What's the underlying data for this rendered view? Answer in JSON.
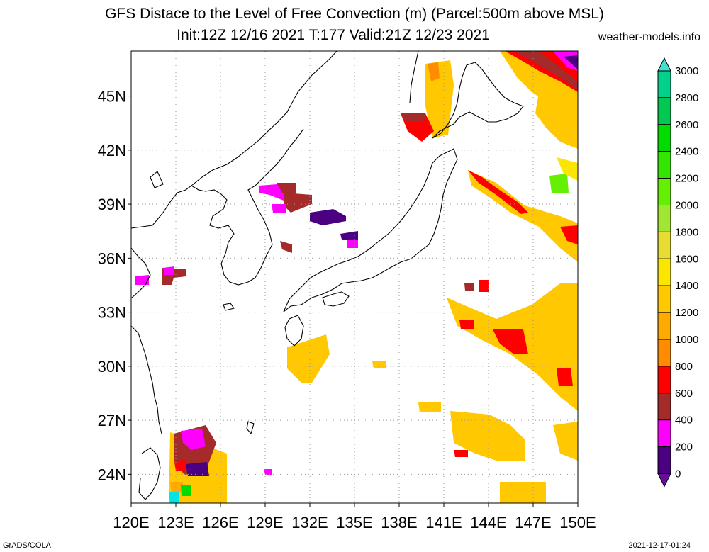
{
  "header": {
    "title": "GFS Distace to the Level of Free Convection (m) (Parcel:500m above MSL)",
    "subtitle": "Init:12Z 12/16 2021 T:177 Valid:21Z 12/23 2021",
    "site": "weather-models.info"
  },
  "map": {
    "lon_range": [
      120,
      150
    ],
    "lat_range": [
      22.4,
      47.5
    ],
    "lat_labels": [
      "45N",
      "42N",
      "39N",
      "36N",
      "33N",
      "30N",
      "27N",
      "24N"
    ],
    "lat_values": [
      45,
      42,
      39,
      36,
      33,
      30,
      27,
      24
    ],
    "lon_labels": [
      "120E",
      "123E",
      "126E",
      "129E",
      "132E",
      "135E",
      "138E",
      "141E",
      "144E",
      "147E",
      "150E"
    ],
    "lon_values": [
      120,
      123,
      126,
      129,
      132,
      135,
      138,
      141,
      144,
      147,
      150
    ],
    "grid": "dotted"
  },
  "colorbar": {
    "labels": [
      "3000",
      "2800",
      "2600",
      "2400",
      "2200",
      "2000",
      "1800",
      "1600",
      "1400",
      "1200",
      "1000",
      "800",
      "600",
      "400",
      "200",
      "0"
    ],
    "colors": [
      "#00e6e6",
      "#00d28c",
      "#00c850",
      "#00dc00",
      "#32e600",
      "#64f000",
      "#a0e632",
      "#e6dc32",
      "#fae600",
      "#ffc800",
      "#ffaa00",
      "#ff8c00",
      "#ff0000",
      "#a52a2a",
      "#ff00ff",
      "#4b0082"
    ],
    "top_arrow_color": "#40e0d0",
    "bottom_arrow_color": "#6a0aa0"
  },
  "footer": {
    "left": "GrADS/COLA",
    "right": "2021-12-17-01:24"
  }
}
